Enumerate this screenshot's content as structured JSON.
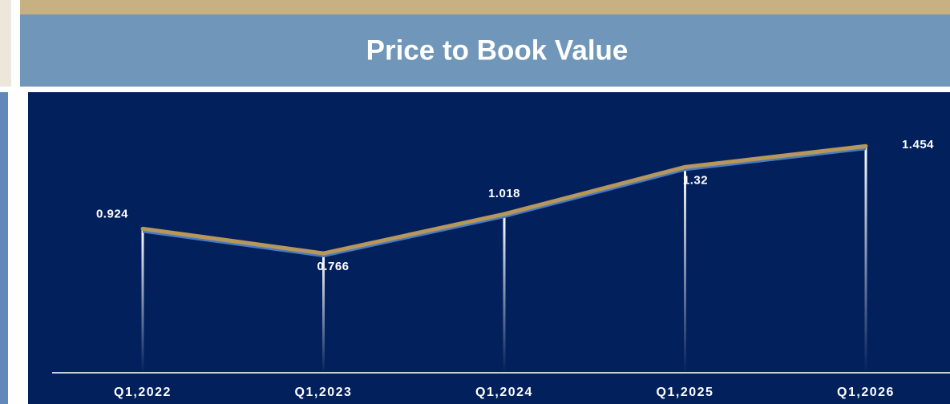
{
  "chart_data": {
    "type": "line",
    "title": "Price to Book Value",
    "categories": [
      "Q1,2022",
      "Q1,2023",
      "Q1,2024",
      "Q1,2025",
      "Q1,2026"
    ],
    "values": [
      0.924,
      0.766,
      1.018,
      1.32,
      1.454
    ],
    "color": "#b8985a",
    "ylim": [
      0,
      1.8
    ]
  }
}
